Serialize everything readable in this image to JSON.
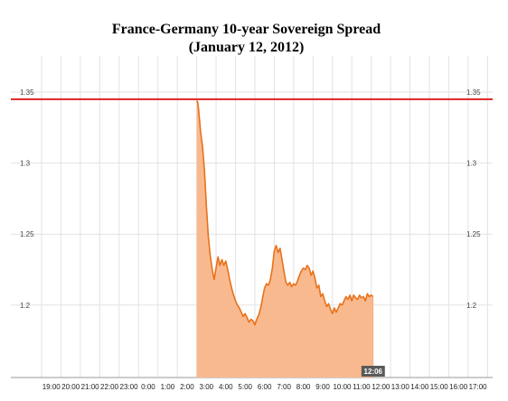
{
  "title_line1": "France-Germany 10-year Sovereign Spread",
  "title_line2": "(January 12, 2012)",
  "chart_data": {
    "type": "area",
    "title": "France-Germany 10-year Sovereign Spread (January 12, 2012)",
    "xlabel": "",
    "ylabel": "",
    "x_tick_labels": [
      "19:00",
      "20:00",
      "21:00",
      "22:00",
      "23:00",
      "0:00",
      "1:00",
      "2:00",
      "3:00",
      "4:00",
      "5:00",
      "6:00",
      "7:00",
      "8:00",
      "9:00",
      "10:00",
      "11:00",
      "12:00",
      "13:00",
      "14:00",
      "15:00",
      "16:00",
      "17:00"
    ],
    "y_tick_labels": [
      "1.35",
      "1.3",
      "1.25",
      "1.2"
    ],
    "ylim": [
      1.155,
      1.365
    ],
    "grid": true,
    "reference_line": {
      "value": 1.345,
      "color": "#dd2222"
    },
    "current_time_label": "12:06",
    "series": [
      {
        "color": "#e8711a",
        "fill_color": "#f9b98e",
        "x": [
          3.0,
          3.05,
          3.1,
          3.15,
          3.2,
          3.3,
          3.4,
          3.5,
          3.6,
          3.7,
          3.8,
          3.9,
          4.0,
          4.1,
          4.2,
          4.3,
          4.4,
          4.5,
          4.6,
          4.7,
          4.8,
          4.9,
          5.0,
          5.1,
          5.2,
          5.3,
          5.4,
          5.5,
          5.6,
          5.7,
          5.8,
          5.9,
          6.0,
          6.1,
          6.2,
          6.3,
          6.4,
          6.5,
          6.6,
          6.7,
          6.8,
          6.9,
          7.0,
          7.1,
          7.2,
          7.3,
          7.4,
          7.5,
          7.6,
          7.7,
          7.8,
          7.9,
          8.0,
          8.1,
          8.2,
          8.3,
          8.4,
          8.5,
          8.6,
          8.7,
          8.8,
          8.9,
          9.0,
          9.1,
          9.2,
          9.3,
          9.4,
          9.5,
          9.6,
          9.7,
          9.8,
          9.9,
          10.0,
          10.1,
          10.2,
          10.3,
          10.4,
          10.5,
          10.6,
          10.7,
          10.8,
          10.9,
          11.0,
          11.1,
          11.2,
          11.3,
          11.4,
          11.5,
          11.6,
          11.7,
          11.8,
          11.9,
          12.0,
          12.1
        ],
        "y": [
          1.344,
          1.343,
          1.338,
          1.33,
          1.322,
          1.312,
          1.295,
          1.27,
          1.248,
          1.235,
          1.225,
          1.218,
          1.226,
          1.234,
          1.228,
          1.232,
          1.228,
          1.231,
          1.225,
          1.218,
          1.212,
          1.207,
          1.203,
          1.2,
          1.198,
          1.195,
          1.192,
          1.194,
          1.191,
          1.188,
          1.19,
          1.189,
          1.186,
          1.19,
          1.193,
          1.198,
          1.205,
          1.212,
          1.215,
          1.214,
          1.218,
          1.226,
          1.238,
          1.242,
          1.237,
          1.24,
          1.232,
          1.224,
          1.216,
          1.214,
          1.216,
          1.213,
          1.215,
          1.214,
          1.217,
          1.221,
          1.224,
          1.226,
          1.225,
          1.228,
          1.226,
          1.221,
          1.224,
          1.219,
          1.212,
          1.214,
          1.206,
          1.208,
          1.203,
          1.199,
          1.201,
          1.197,
          1.194,
          1.198,
          1.195,
          1.198,
          1.201,
          1.2,
          1.203,
          1.206,
          1.204,
          1.207,
          1.203,
          1.207,
          1.205,
          1.204,
          1.207,
          1.205,
          1.206,
          1.203,
          1.208,
          1.206,
          1.207,
          1.206
        ]
      }
    ]
  }
}
